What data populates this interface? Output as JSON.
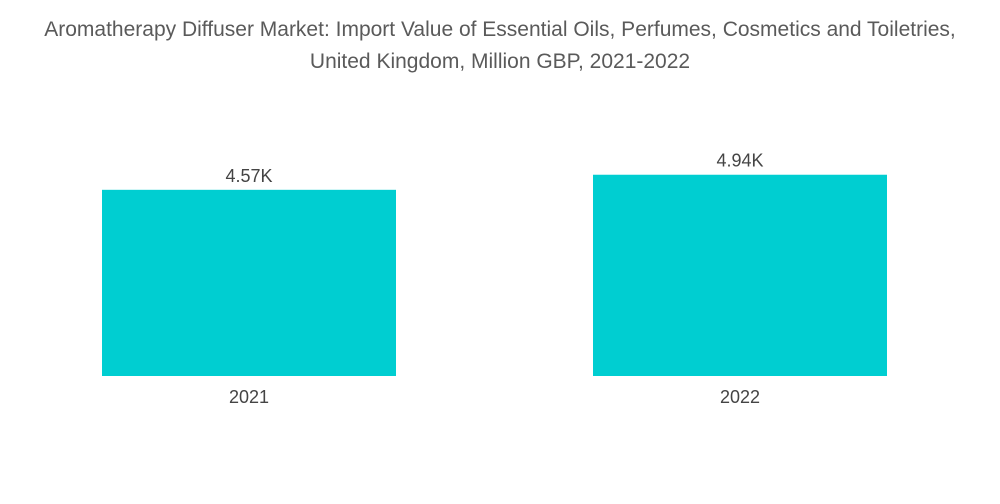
{
  "chart_data": {
    "type": "bar",
    "title": "Aromatherapy Diffuser Market: Import Value of Essential Oils, Perfumes, Cosmetics and Toiletries, United Kingdom, Million GBP, 2021-2022",
    "categories": [
      "2021",
      "2022"
    ],
    "values": [
      4570,
      4940
    ],
    "data_labels": [
      "4.57K",
      "4.94K"
    ],
    "xlabel": "",
    "ylabel": "",
    "ylim": [
      0,
      5400
    ],
    "grid": false,
    "legend": "none",
    "bar_color": "#00CED1"
  }
}
